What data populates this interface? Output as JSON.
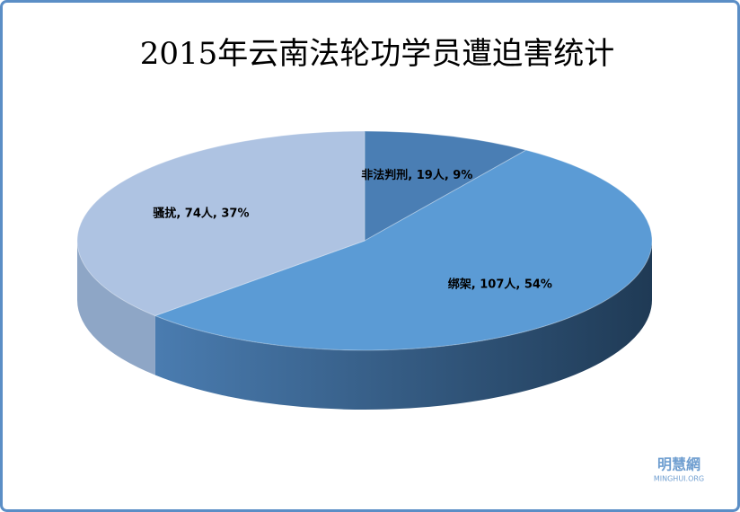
{
  "chart_data": {
    "type": "pie3d",
    "title": "2015年云南法轮功学员遭迫害统计",
    "values": [
      19,
      107,
      74
    ],
    "value_labels": [
      "非法判刑, 19人, 9%",
      "绑架, 107人, 54%",
      "骚扰, 74人, 37%"
    ],
    "colors": [
      "#4a7eb4",
      "#5b9bd5",
      "#aec3e2"
    ],
    "side_colors": [
      "#2f5b87",
      "#2b5078",
      "#8ea6c6"
    ]
  },
  "watermark": {
    "name": "明慧網",
    "site": "MINGHUI.ORG"
  }
}
